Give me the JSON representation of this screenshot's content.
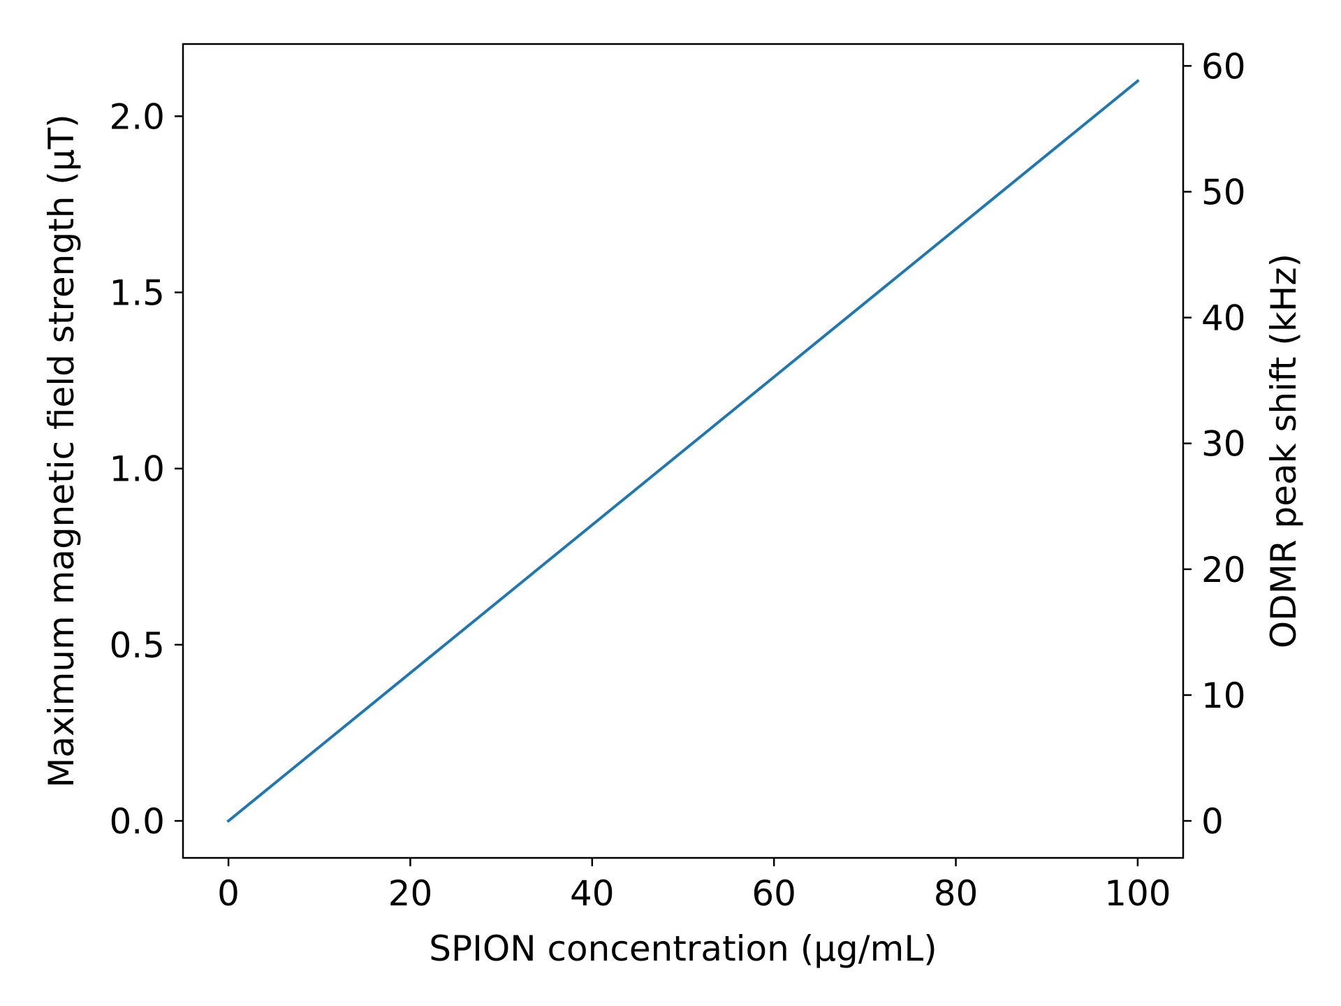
{
  "chart_data": {
    "type": "line",
    "title": "",
    "xlabel": "SPION concentration (µg/mL)",
    "ylabel": "Maximum magnetic field strength (µT)",
    "y2label": "ODMR peak shift (kHz)",
    "xlim": [
      -5,
      105
    ],
    "ylim": [
      -0.105,
      2.205
    ],
    "y2lim": [
      -2.94,
      61.74
    ],
    "xticks": [
      0,
      20,
      40,
      60,
      80,
      100
    ],
    "xtick_labels": [
      "0",
      "20",
      "40",
      "60",
      "80",
      "100"
    ],
    "yticks": [
      0.0,
      0.5,
      1.0,
      1.5,
      2.0
    ],
    "ytick_labels": [
      "0.0",
      "0.5",
      "1.0",
      "1.5",
      "2.0"
    ],
    "y2ticks": [
      0,
      10,
      20,
      30,
      40,
      50,
      60
    ],
    "y2tick_labels": [
      "0",
      "10",
      "20",
      "30",
      "40",
      "50",
      "60"
    ],
    "grid": false,
    "series": [
      {
        "color": "#1f77b4",
        "axis": "left",
        "x": [
          0,
          100
        ],
        "y": [
          0.0,
          2.1
        ]
      }
    ]
  }
}
